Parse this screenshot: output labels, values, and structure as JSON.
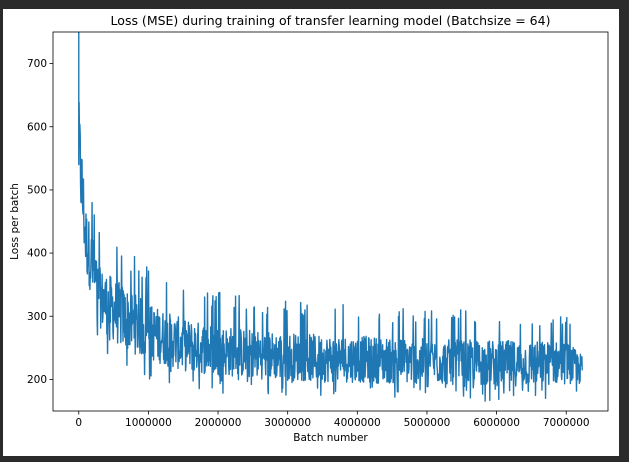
{
  "colors": {
    "background": "#2b2b2b",
    "figure": "#ffffff",
    "line": "#1f77b4",
    "icon": "#cfcfcf"
  },
  "icons": {
    "output": "bar-chart-icon"
  },
  "chart_data": {
    "type": "line",
    "title": "Loss (MSE) during training of transfer learning model (Batchsize = 64)",
    "xlabel": "Batch number",
    "ylabel": "Loss per batch",
    "xlim": [
      -370000,
      7600000
    ],
    "ylim": [
      150,
      750
    ],
    "xticks": [
      0,
      1000000,
      2000000,
      3000000,
      4000000,
      5000000,
      6000000,
      7000000
    ],
    "xtick_labels": [
      "0",
      "1000000",
      "2000000",
      "3000000",
      "4000000",
      "5000000",
      "6000000",
      "7000000"
    ],
    "yticks": [
      200,
      300,
      400,
      500,
      600,
      700
    ],
    "ytick_labels": [
      "200",
      "300",
      "400",
      "500",
      "600",
      "700"
    ],
    "grid": false,
    "legend": "none",
    "series": [
      {
        "x": [
          0,
          20000,
          40000,
          60000,
          80000,
          100000,
          130000,
          160000,
          200000,
          240000,
          280000,
          330000,
          380000,
          440000,
          500000,
          560000,
          630000,
          700000,
          800000,
          900000,
          1000000,
          1100000,
          1200000,
          1350000,
          1500000,
          1650000,
          1800000,
          2000000,
          2200000,
          2400000,
          2600000,
          2800000,
          3000000,
          3200000,
          3400000,
          3600000,
          3800000,
          4000000,
          4200000,
          4400000,
          4600000,
          4800000,
          5000000,
          5200000,
          5400000,
          5600000,
          5800000,
          6000000,
          6200000,
          6400000,
          6600000,
          6800000,
          7000000,
          7150000,
          7230000
        ],
        "y": [
          750,
          440,
          575,
          330,
          548,
          360,
          455,
          345,
          420,
          310,
          360,
          300,
          345,
          290,
          330,
          270,
          300,
          255,
          285,
          250,
          275,
          240,
          268,
          245,
          262,
          238,
          258,
          240,
          252,
          236,
          250,
          232,
          248,
          230,
          245,
          228,
          246,
          226,
          242,
          224,
          240,
          222,
          238,
          220,
          236,
          218,
          235,
          216,
          234,
          214,
          232,
          213,
          228,
          218,
          240
        ]
      }
    ],
    "line_envelope": {
      "x": [
        0,
        100000,
        300000,
        600000,
        1000000,
        1500000,
        2000000,
        2500000,
        3000000,
        3500000,
        4000000,
        4500000,
        5000000,
        5500000,
        6000000,
        6500000,
        7000000,
        7230000
      ],
      "low": [
        440,
        330,
        250,
        215,
        200,
        185,
        178,
        175,
        172,
        170,
        170,
        168,
        168,
        166,
        165,
        165,
        170,
        175
      ],
      "high": [
        750,
        550,
        440,
        420,
        380,
        350,
        340,
        330,
        325,
        320,
        318,
        315,
        312,
        310,
        310,
        308,
        305,
        270
      ]
    }
  }
}
